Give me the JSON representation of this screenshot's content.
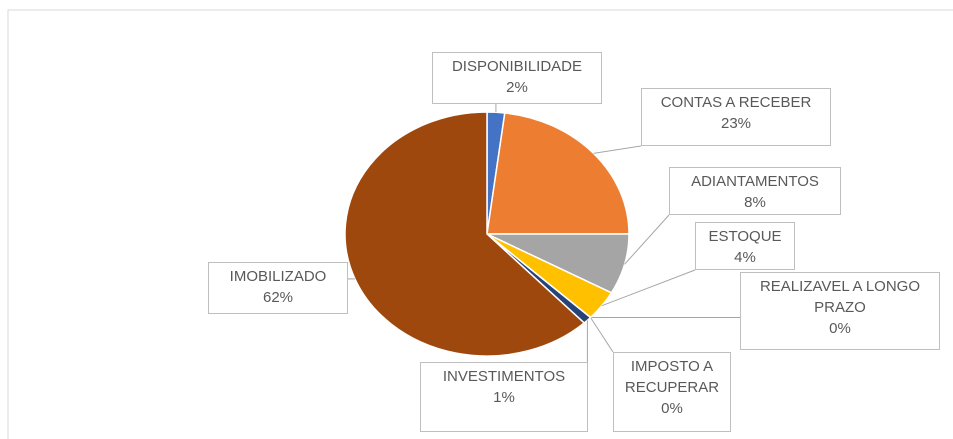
{
  "chart_data": {
    "type": "pie",
    "categories": [
      "DISPONIBILIDADE",
      "CONTAS A RECEBER",
      "ADIANTAMENTOS",
      "ESTOQUE",
      "REALIZAVEL A LONGO PRAZO",
      "IMPOSTO A RECUPERAR",
      "INVESTIMENTOS",
      "IMOBILIZADO"
    ],
    "values": [
      2,
      23,
      8,
      4,
      0,
      0,
      1,
      62
    ],
    "value_labels": [
      "2%",
      "23%",
      "8%",
      "4%",
      "0%",
      "0%",
      "1%",
      "62%"
    ],
    "colors": [
      "#4472c4",
      "#ed7d31",
      "#a5a5a5",
      "#ffc000",
      "#5b9bd5",
      "#70ad47",
      "#264478",
      "#9e480e"
    ]
  }
}
